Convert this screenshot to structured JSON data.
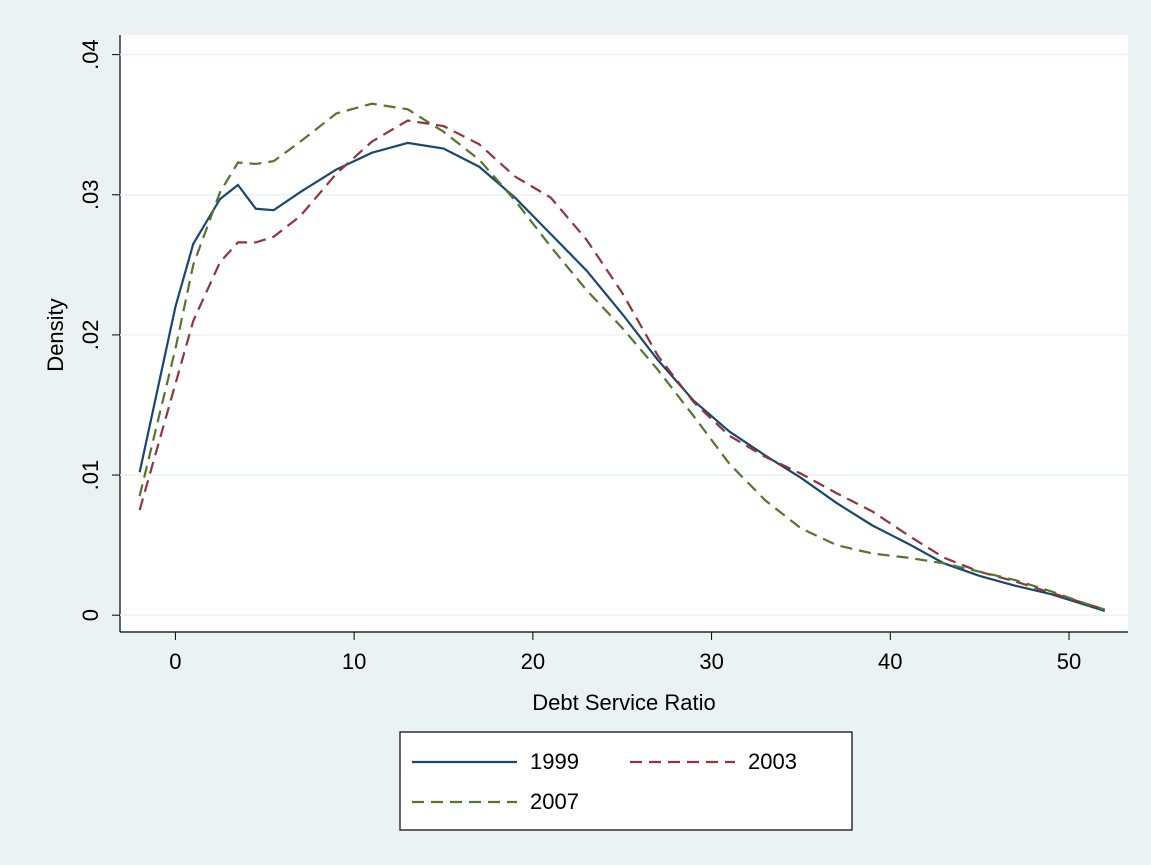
{
  "chart_data": {
    "type": "line",
    "x_label": "Debt Service Ratio",
    "y_label": "Density",
    "x": [
      -2,
      0,
      1,
      2.5,
      3.5,
      4.5,
      5.5,
      7,
      9,
      11,
      13,
      15,
      17,
      19,
      21,
      23,
      25,
      27,
      29,
      31,
      33,
      35,
      37,
      39,
      41,
      43,
      45,
      47,
      49,
      51,
      52
    ],
    "series": [
      {
        "name": "1999",
        "color": "#1a476f",
        "style": "solid",
        "values": [
          0.0102,
          0.022,
          0.0265,
          0.0297,
          0.0307,
          0.029,
          0.0289,
          0.0302,
          0.0318,
          0.033,
          0.0337,
          0.0333,
          0.032,
          0.0298,
          0.0272,
          0.0246,
          0.0215,
          0.0182,
          0.0153,
          0.0131,
          0.0114,
          0.0098,
          0.008,
          0.0064,
          0.0051,
          0.0037,
          0.0028,
          0.0021,
          0.0015,
          0.0007,
          0.0003
        ]
      },
      {
        "name": "2003",
        "color": "#90353b",
        "style": "dash",
        "values": [
          0.0075,
          0.0165,
          0.021,
          0.0252,
          0.0266,
          0.0266,
          0.027,
          0.0285,
          0.0315,
          0.0338,
          0.0353,
          0.0349,
          0.0336,
          0.0313,
          0.0298,
          0.0268,
          0.023,
          0.0185,
          0.0152,
          0.0128,
          0.0113,
          0.0101,
          0.0087,
          0.0074,
          0.0057,
          0.0041,
          0.0031,
          0.0024,
          0.0016,
          0.0008,
          0.0004
        ]
      },
      {
        "name": "2007",
        "color": "#55752f",
        "style": "dash",
        "values": [
          0.0085,
          0.019,
          0.025,
          0.0302,
          0.0323,
          0.0322,
          0.0324,
          0.0338,
          0.0358,
          0.0365,
          0.0361,
          0.0345,
          0.0325,
          0.0296,
          0.0263,
          0.0232,
          0.0205,
          0.0175,
          0.0142,
          0.0108,
          0.0082,
          0.0062,
          0.005,
          0.0044,
          0.0041,
          0.0037,
          0.0031,
          0.0025,
          0.0017,
          0.0008,
          0.0004
        ]
      }
    ],
    "xlim": [
      -3.1,
      53.3
    ],
    "xticks": [
      0,
      10,
      20,
      30,
      40,
      50
    ],
    "ylim": [
      -0.0012,
      0.0414
    ],
    "yticks": [
      0,
      {
        "value": 0.01,
        "label": ".01"
      },
      {
        "value": 0.02,
        "label": ".02"
      },
      {
        "value": 0.03,
        "label": ".03"
      },
      {
        "value": 0.04,
        "label": ".04"
      }
    ],
    "grid": true,
    "legend": "bottom"
  }
}
